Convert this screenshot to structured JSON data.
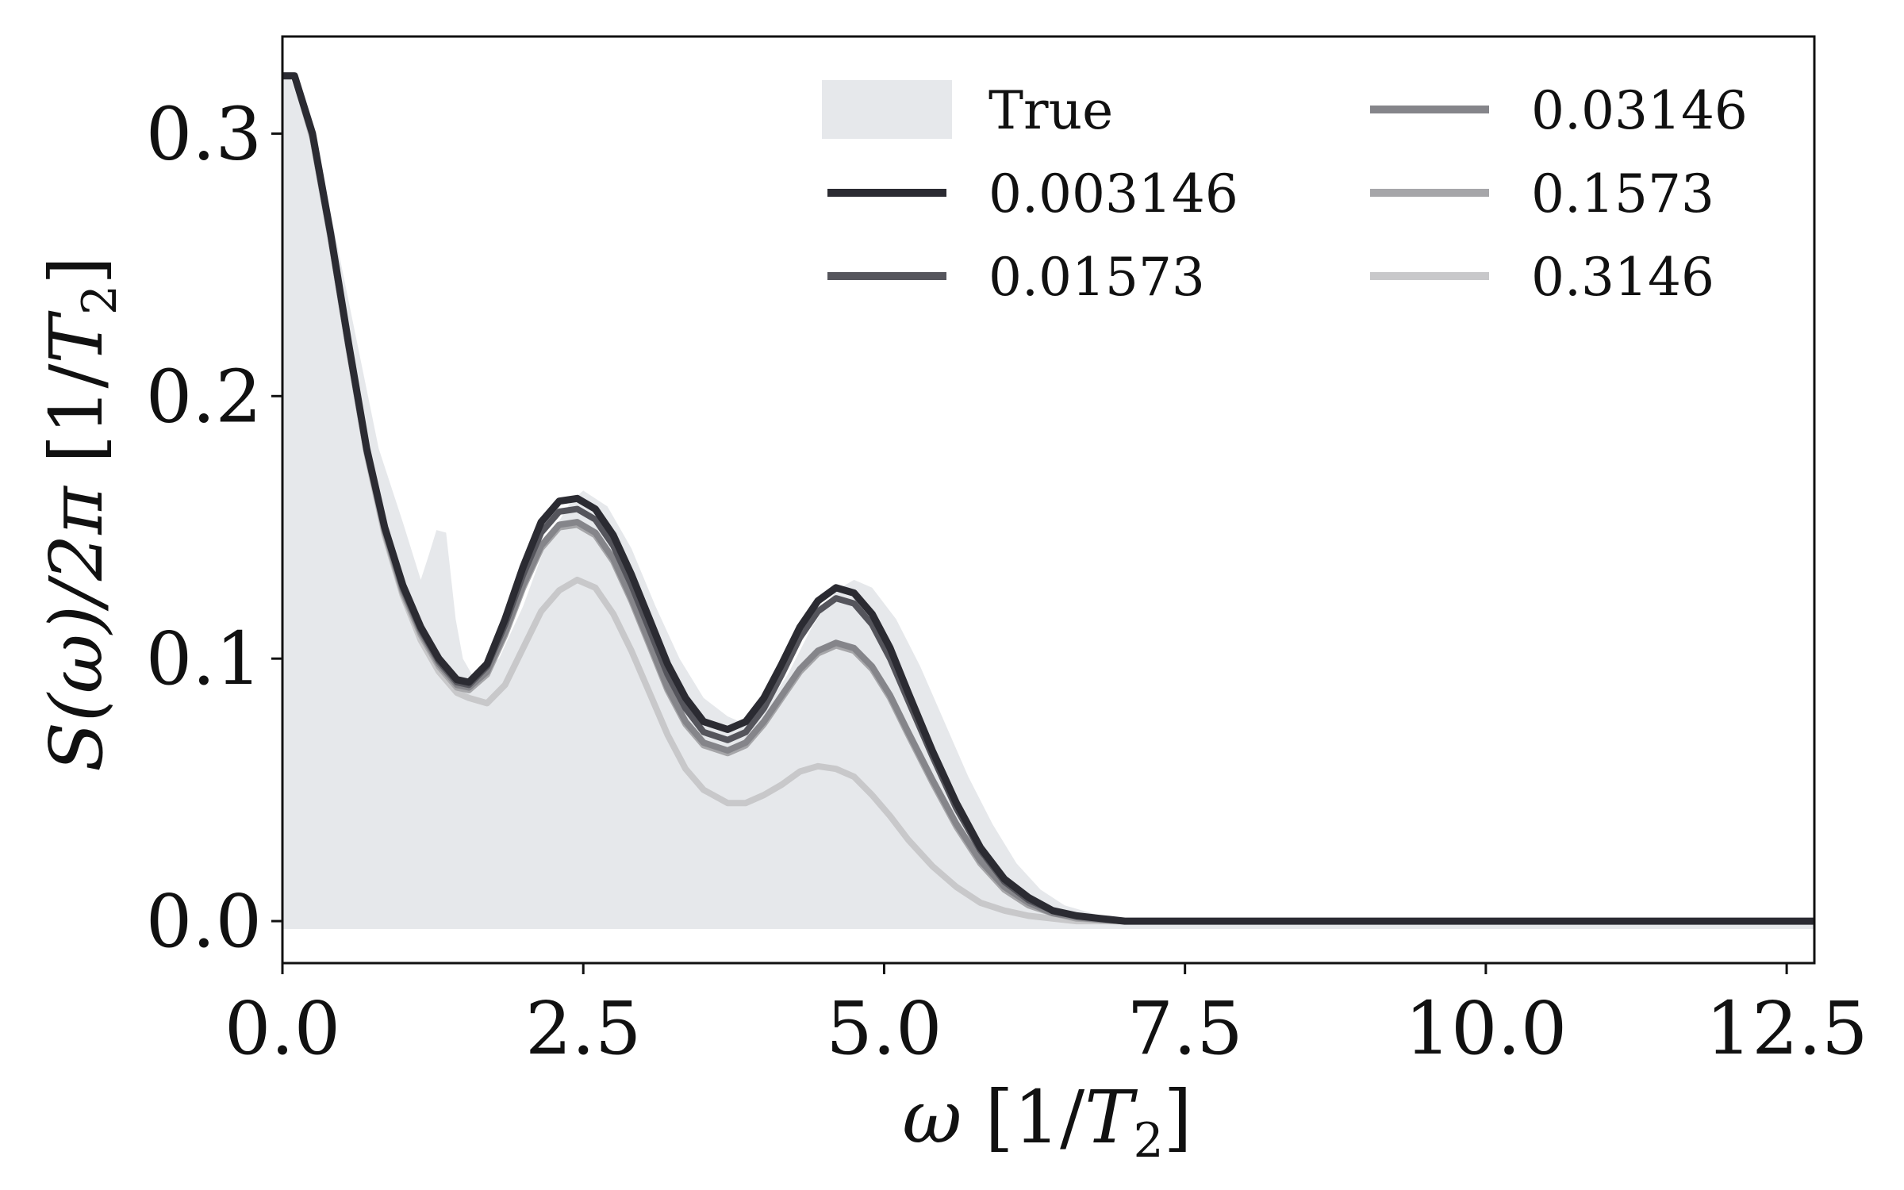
{
  "chart_data": {
    "type": "line",
    "xlabel": {
      "pre": "ω",
      "mid": " [1/",
      "var": "T",
      "sub": "2",
      "post": "]"
    },
    "ylabel": {
      "pre": "S(ω)/2π",
      "mid": " [1/",
      "var": "T",
      "sub": "2",
      "post": "]"
    },
    "xlim": [
      0,
      12.73
    ],
    "ylim": [
      -0.016,
      0.337
    ],
    "x_ticks": [
      0.0,
      2.5,
      5.0,
      7.5,
      10.0,
      12.5
    ],
    "x_tick_labels": [
      "0.0",
      "2.5",
      "5.0",
      "7.5",
      "10.0",
      "12.5"
    ],
    "y_ticks": [
      0.0,
      0.1,
      0.2,
      0.3
    ],
    "y_tick_labels": [
      "0.0",
      "0.1",
      "0.2",
      "0.3"
    ],
    "grid": false,
    "legend": {
      "placement": "top-right",
      "columns": 2
    },
    "true_area": {
      "name": "True",
      "color": "#e6e8eb",
      "x": [
        0.0,
        0.05,
        0.2,
        0.4,
        0.6,
        0.8,
        1.0,
        1.15,
        1.22,
        1.28,
        1.36,
        1.44,
        1.5,
        1.6,
        1.8,
        2.0,
        2.2,
        2.4,
        2.5,
        2.7,
        2.9,
        3.1,
        3.3,
        3.5,
        3.7,
        3.85,
        4.0,
        4.2,
        4.4,
        4.6,
        4.75,
        4.9,
        5.1,
        5.3,
        5.5,
        5.7,
        5.9,
        6.1,
        6.3,
        6.5,
        6.8,
        7.1,
        7.5,
        12.73
      ],
      "y": [
        0.323,
        0.323,
        0.305,
        0.27,
        0.225,
        0.18,
        0.152,
        0.13,
        0.14,
        0.149,
        0.148,
        0.115,
        0.1,
        0.092,
        0.1,
        0.12,
        0.145,
        0.16,
        0.164,
        0.158,
        0.142,
        0.12,
        0.1,
        0.085,
        0.078,
        0.075,
        0.08,
        0.094,
        0.112,
        0.126,
        0.13,
        0.127,
        0.115,
        0.097,
        0.076,
        0.055,
        0.037,
        0.022,
        0.012,
        0.006,
        0.002,
        0.0,
        0.0,
        0.0
      ]
    },
    "series": [
      {
        "name": "0.003146",
        "color": "#2b2b32",
        "width": 9,
        "x": [
          0.0,
          0.1,
          0.25,
          0.4,
          0.55,
          0.7,
          0.85,
          1.0,
          1.15,
          1.3,
          1.45,
          1.55,
          1.7,
          1.85,
          2.0,
          2.15,
          2.3,
          2.45,
          2.6,
          2.75,
          2.9,
          3.05,
          3.2,
          3.35,
          3.5,
          3.7,
          3.85,
          4.0,
          4.15,
          4.3,
          4.45,
          4.6,
          4.75,
          4.9,
          5.05,
          5.2,
          5.4,
          5.6,
          5.8,
          6.0,
          6.2,
          6.4,
          6.6,
          6.8,
          7.0,
          7.3,
          7.6,
          8.0,
          9.0,
          10.0,
          11.0,
          12.73
        ],
        "y": [
          0.322,
          0.322,
          0.3,
          0.262,
          0.22,
          0.18,
          0.15,
          0.128,
          0.112,
          0.1,
          0.092,
          0.091,
          0.098,
          0.115,
          0.135,
          0.152,
          0.16,
          0.161,
          0.157,
          0.147,
          0.132,
          0.115,
          0.098,
          0.085,
          0.076,
          0.073,
          0.076,
          0.085,
          0.098,
          0.112,
          0.122,
          0.127,
          0.125,
          0.117,
          0.104,
          0.087,
          0.065,
          0.045,
          0.028,
          0.016,
          0.009,
          0.004,
          0.002,
          0.001,
          0.0,
          0.0,
          0.0,
          0.0,
          0.0,
          0.0,
          0.0,
          0.0
        ]
      },
      {
        "name": "0.01573",
        "color": "#55555c",
        "width": 8,
        "x": [
          0.0,
          0.1,
          0.25,
          0.4,
          0.55,
          0.7,
          0.85,
          1.0,
          1.15,
          1.3,
          1.45,
          1.55,
          1.7,
          1.85,
          2.0,
          2.15,
          2.3,
          2.45,
          2.6,
          2.75,
          2.9,
          3.05,
          3.2,
          3.35,
          3.5,
          3.7,
          3.85,
          4.0,
          4.15,
          4.3,
          4.45,
          4.6,
          4.75,
          4.9,
          5.05,
          5.2,
          5.4,
          5.6,
          5.8,
          6.0,
          6.2,
          6.4,
          6.6,
          6.8,
          7.0,
          7.3,
          7.6,
          8.0,
          9.0,
          10.0,
          11.0,
          12.73
        ],
        "y": [
          0.322,
          0.322,
          0.3,
          0.262,
          0.22,
          0.18,
          0.15,
          0.127,
          0.111,
          0.099,
          0.091,
          0.09,
          0.097,
          0.113,
          0.132,
          0.148,
          0.156,
          0.157,
          0.153,
          0.143,
          0.128,
          0.111,
          0.094,
          0.081,
          0.072,
          0.069,
          0.072,
          0.081,
          0.094,
          0.108,
          0.118,
          0.123,
          0.121,
          0.113,
          0.1,
          0.084,
          0.063,
          0.043,
          0.027,
          0.015,
          0.008,
          0.004,
          0.002,
          0.001,
          0.0,
          0.0,
          0.0,
          0.0,
          0.0,
          0.0,
          0.0,
          0.0
        ]
      },
      {
        "name": "0.03146",
        "color": "#85858a",
        "width": 8,
        "x": [
          0.0,
          0.1,
          0.25,
          0.4,
          0.55,
          0.7,
          0.85,
          1.0,
          1.15,
          1.3,
          1.45,
          1.55,
          1.7,
          1.85,
          2.0,
          2.15,
          2.3,
          2.45,
          2.6,
          2.75,
          2.9,
          3.05,
          3.2,
          3.35,
          3.5,
          3.7,
          3.85,
          4.0,
          4.15,
          4.3,
          4.45,
          4.6,
          4.75,
          4.9,
          5.05,
          5.2,
          5.4,
          5.6,
          5.8,
          6.0,
          6.2,
          6.4,
          6.6,
          6.8,
          7.0,
          7.3,
          7.6,
          8.0,
          9.0,
          10.0,
          11.0,
          12.73
        ],
        "y": [
          0.322,
          0.322,
          0.299,
          0.261,
          0.219,
          0.179,
          0.149,
          0.126,
          0.11,
          0.098,
          0.09,
          0.089,
          0.095,
          0.11,
          0.128,
          0.143,
          0.151,
          0.152,
          0.148,
          0.138,
          0.123,
          0.106,
          0.089,
          0.076,
          0.068,
          0.065,
          0.068,
          0.076,
          0.086,
          0.096,
          0.103,
          0.106,
          0.104,
          0.097,
          0.086,
          0.072,
          0.054,
          0.037,
          0.023,
          0.013,
          0.007,
          0.003,
          0.0015,
          0.0005,
          0.0,
          0.0,
          0.0,
          0.0,
          0.0,
          0.0,
          0.0,
          0.0
        ]
      },
      {
        "name": "0.1573",
        "color": "#a6a6a9",
        "width": 8,
        "x": [
          0.0,
          0.1,
          0.25,
          0.4,
          0.55,
          0.7,
          0.85,
          1.0,
          1.15,
          1.3,
          1.45,
          1.55,
          1.7,
          1.85,
          2.0,
          2.15,
          2.3,
          2.45,
          2.6,
          2.75,
          2.9,
          3.05,
          3.2,
          3.35,
          3.5,
          3.7,
          3.85,
          4.0,
          4.15,
          4.3,
          4.45,
          4.6,
          4.75,
          4.9,
          5.05,
          5.2,
          5.4,
          5.6,
          5.8,
          6.0,
          6.2,
          6.4,
          6.6,
          6.8,
          7.0,
          7.3,
          7.6,
          8.0,
          9.0,
          10.0,
          11.0,
          12.73
        ],
        "y": [
          0.322,
          0.322,
          0.299,
          0.261,
          0.219,
          0.179,
          0.148,
          0.125,
          0.109,
          0.097,
          0.089,
          0.088,
          0.094,
          0.109,
          0.127,
          0.142,
          0.15,
          0.151,
          0.147,
          0.137,
          0.122,
          0.105,
          0.088,
          0.075,
          0.067,
          0.064,
          0.067,
          0.075,
          0.085,
          0.095,
          0.102,
          0.105,
          0.103,
          0.096,
          0.085,
          0.071,
          0.053,
          0.036,
          0.022,
          0.012,
          0.006,
          0.003,
          0.001,
          0.0005,
          0.0,
          0.0,
          0.0,
          0.0,
          0.0,
          0.0,
          0.0,
          0.0
        ]
      },
      {
        "name": "0.3146",
        "color": "#c8c8ca",
        "width": 8,
        "x": [
          0.0,
          0.1,
          0.25,
          0.4,
          0.55,
          0.7,
          0.85,
          1.0,
          1.15,
          1.3,
          1.45,
          1.55,
          1.7,
          1.85,
          2.0,
          2.15,
          2.3,
          2.45,
          2.6,
          2.75,
          2.9,
          3.05,
          3.2,
          3.35,
          3.5,
          3.7,
          3.85,
          4.0,
          4.15,
          4.3,
          4.45,
          4.6,
          4.75,
          4.9,
          5.05,
          5.2,
          5.4,
          5.6,
          5.8,
          6.0,
          6.2,
          6.4,
          6.6,
          6.8,
          7.0,
          7.3,
          7.6,
          8.0,
          9.0,
          10.0,
          11.0,
          12.73
        ],
        "y": [
          0.322,
          0.322,
          0.298,
          0.26,
          0.218,
          0.178,
          0.147,
          0.124,
          0.107,
          0.095,
          0.087,
          0.085,
          0.083,
          0.09,
          0.104,
          0.118,
          0.126,
          0.13,
          0.127,
          0.117,
          0.103,
          0.087,
          0.071,
          0.058,
          0.05,
          0.045,
          0.045,
          0.048,
          0.052,
          0.057,
          0.059,
          0.058,
          0.055,
          0.048,
          0.04,
          0.031,
          0.021,
          0.013,
          0.007,
          0.004,
          0.002,
          0.001,
          0.0,
          0.0,
          0.0,
          0.0,
          0.0,
          0.0,
          0.0,
          0.0,
          0.0,
          0.0
        ]
      }
    ]
  }
}
